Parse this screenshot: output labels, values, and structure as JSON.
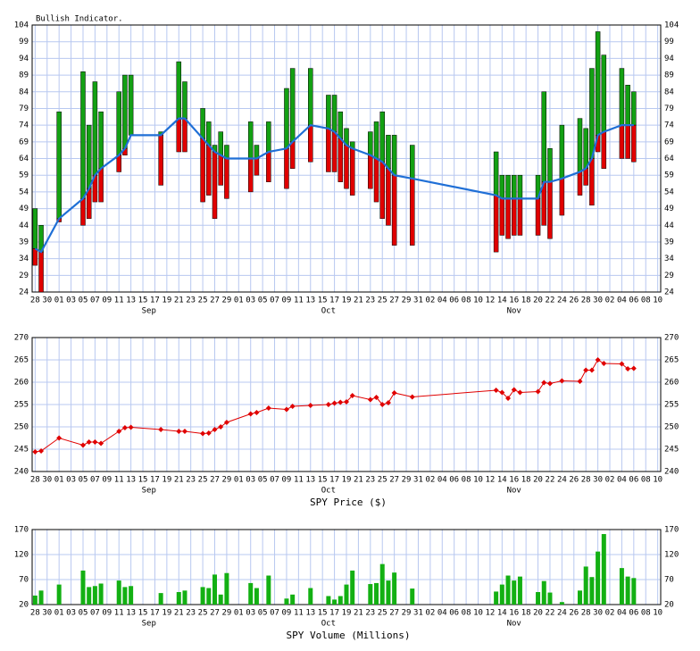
{
  "chart_data": [
    {
      "type": "range",
      "title": "Bullish Indicator.",
      "x": [
        0,
        1,
        4,
        8,
        9,
        10,
        11,
        14,
        15,
        16,
        21,
        24,
        25,
        28,
        29,
        30,
        31,
        32,
        36,
        37,
        39,
        42,
        43,
        46,
        49,
        50,
        51,
        52,
        53,
        56,
        57,
        58,
        59,
        60,
        63,
        77,
        78,
        79,
        80,
        81,
        84,
        85,
        86,
        88,
        91,
        92,
        93,
        94,
        95,
        98,
        99,
        100
      ],
      "high": [
        49,
        44,
        78,
        90,
        74,
        87,
        78,
        84,
        89,
        89,
        72,
        93,
        87,
        79,
        75,
        68,
        72,
        68,
        75,
        68,
        75,
        85,
        91,
        91,
        83,
        83,
        78,
        73,
        69,
        72,
        75,
        78,
        71,
        71,
        68,
        66,
        59,
        59,
        59,
        59,
        59,
        84,
        67,
        74,
        76,
        73,
        91,
        102,
        95,
        91,
        86,
        84
      ],
      "low": [
        32,
        24,
        45,
        44,
        46,
        51,
        51,
        60,
        65,
        71,
        56,
        66,
        66,
        51,
        53,
        46,
        56,
        52,
        54,
        59,
        57,
        55,
        61,
        63,
        60,
        60,
        57,
        55,
        53,
        55,
        51,
        46,
        44,
        38,
        38,
        36,
        41,
        40,
        41,
        41,
        41,
        44,
        40,
        47,
        53,
        56,
        50,
        66,
        61,
        64,
        64,
        63
      ],
      "average": [
        37,
        36,
        46,
        52,
        55,
        59,
        61,
        65,
        67,
        71,
        71,
        76,
        76,
        70,
        68,
        66,
        65,
        64,
        64,
        64,
        66,
        67,
        69,
        74,
        73,
        72,
        70,
        68,
        67,
        65,
        64,
        63,
        61,
        59,
        58,
        53,
        52,
        52,
        52,
        52,
        52,
        57,
        57,
        58,
        60,
        61,
        64,
        71,
        72,
        74,
        74,
        74
      ],
      "up_color": "#13a013",
      "down_color": "#e00000",
      "line_color": "#1f6fd6",
      "xlim": [
        -0.5,
        104.5
      ],
      "xticks": [
        {
          "value": 0,
          "label": "28"
        },
        {
          "value": 2,
          "label": "30"
        },
        {
          "value": 4,
          "label": "01"
        },
        {
          "value": 6,
          "label": "03"
        },
        {
          "value": 8,
          "label": "05"
        },
        {
          "value": 10,
          "label": "07"
        },
        {
          "value": 12,
          "label": "09"
        },
        {
          "value": 14,
          "label": "11"
        },
        {
          "value": 16,
          "label": "13"
        },
        {
          "value": 18,
          "label": "15"
        },
        {
          "value": 20,
          "label": "17"
        },
        {
          "value": 22,
          "label": "19"
        },
        {
          "value": 24,
          "label": "21"
        },
        {
          "value": 26,
          "label": "23"
        },
        {
          "value": 28,
          "label": "25"
        },
        {
          "value": 30,
          "label": "27"
        },
        {
          "value": 32,
          "label": "29"
        },
        {
          "value": 34,
          "label": "01"
        },
        {
          "value": 36,
          "label": "03"
        },
        {
          "value": 38,
          "label": "05"
        },
        {
          "value": 40,
          "label": "07"
        },
        {
          "value": 42,
          "label": "09"
        },
        {
          "value": 44,
          "label": "11"
        },
        {
          "value": 46,
          "label": "13"
        },
        {
          "value": 48,
          "label": "15"
        },
        {
          "value": 50,
          "label": "17"
        },
        {
          "value": 52,
          "label": "19"
        },
        {
          "value": 54,
          "label": "21"
        },
        {
          "value": 56,
          "label": "23"
        },
        {
          "value": 58,
          "label": "25"
        },
        {
          "value": 60,
          "label": "27"
        },
        {
          "value": 62,
          "label": "29"
        },
        {
          "value": 64,
          "label": "31"
        },
        {
          "value": 66,
          "label": "02"
        },
        {
          "value": 68,
          "label": "04"
        },
        {
          "value": 70,
          "label": "06"
        },
        {
          "value": 72,
          "label": "08"
        },
        {
          "value": 74,
          "label": "10"
        },
        {
          "value": 76,
          "label": "12"
        },
        {
          "value": 78,
          "label": "14"
        },
        {
          "value": 80,
          "label": "16"
        },
        {
          "value": 82,
          "label": "18"
        },
        {
          "value": 84,
          "label": "20"
        },
        {
          "value": 86,
          "label": "22"
        },
        {
          "value": 88,
          "label": "24"
        },
        {
          "value": 90,
          "label": "26"
        },
        {
          "value": 92,
          "label": "28"
        },
        {
          "value": 94,
          "label": "30"
        },
        {
          "value": 96,
          "label": "02"
        },
        {
          "value": 98,
          "label": "04"
        },
        {
          "value": 100,
          "label": "06"
        },
        {
          "value": 102,
          "label": "08"
        },
        {
          "value": 104,
          "label": "10"
        }
      ],
      "month_labels": [
        {
          "value": 19,
          "label": "Sep"
        },
        {
          "value": 49,
          "label": "Oct"
        },
        {
          "value": 80,
          "label": "Nov"
        }
      ],
      "ylim": [
        24,
        104
      ],
      "yticks": [
        24,
        29,
        34,
        39,
        44,
        49,
        54,
        59,
        64,
        69,
        74,
        79,
        84,
        89,
        94,
        99,
        104
      ],
      "grid": true
    },
    {
      "type": "line",
      "xlabel": "SPY Price ($)",
      "color": "#e00000",
      "values": [
        244.4,
        244.6,
        247.5,
        245.9,
        246.6,
        246.6,
        246.3,
        249.0,
        249.8,
        249.9,
        249.4,
        249.0,
        249.0,
        248.5,
        248.6,
        249.4,
        250.0,
        251.0,
        252.9,
        253.2,
        254.2,
        253.9,
        254.6,
        254.8,
        255.0,
        255.3,
        255.5,
        255.6,
        257.0,
        256.1,
        256.6,
        255.0,
        255.4,
        257.6,
        256.7,
        258.2,
        257.7,
        256.4,
        258.3,
        257.7,
        257.9,
        259.9,
        259.7,
        260.3,
        260.2,
        262.7,
        262.7,
        265.0,
        264.2,
        264.1,
        263.0,
        263.1
      ],
      "ylim": [
        240,
        270
      ],
      "yticks": [
        240,
        245,
        250,
        255,
        260,
        265,
        270
      ],
      "grid": true
    },
    {
      "type": "bar",
      "xlabel": "SPY Volume (Millions)",
      "color": "#13b013",
      "values": [
        38,
        48,
        60,
        88,
        55,
        57,
        62,
        68,
        55,
        57,
        43,
        45,
        48,
        55,
        53,
        80,
        40,
        83,
        63,
        53,
        78,
        32,
        40,
        53,
        37,
        30,
        37,
        60,
        88,
        61,
        63,
        101,
        68,
        84,
        52,
        46,
        60,
        78,
        68,
        76,
        45,
        67,
        44,
        25,
        48,
        96,
        75,
        126,
        161,
        93,
        76,
        73
      ],
      "ylim": [
        20,
        170
      ],
      "yticks": [
        20,
        70,
        120,
        170
      ],
      "grid": true
    }
  ]
}
